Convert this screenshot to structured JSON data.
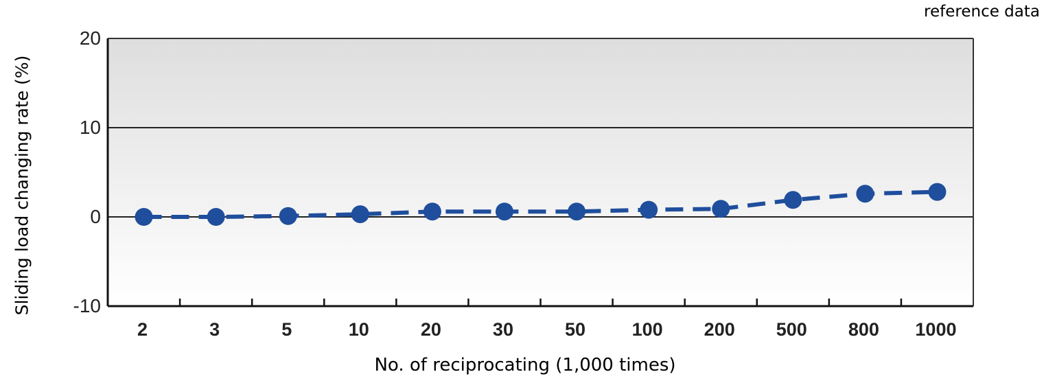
{
  "note": "reference data",
  "chart_data": {
    "type": "line",
    "title": "",
    "xlabel": "No. of reciprocating (1,000 times)",
    "ylabel": "Sliding load changing rate (%)",
    "categories": [
      "2",
      "3",
      "5",
      "10",
      "20",
      "30",
      "50",
      "100",
      "200",
      "500",
      "800",
      "1000"
    ],
    "series": [
      {
        "values": [
          0.0,
          0.0,
          0.1,
          0.3,
          0.6,
          0.6,
          0.6,
          0.8,
          0.9,
          1.9,
          2.6,
          2.8
        ],
        "color": "#1f4e9c",
        "line_style": "dashed",
        "marker": "circle"
      }
    ],
    "ylim": [
      -10,
      20
    ],
    "yticks": [
      "20",
      "10",
      "0",
      "-10"
    ],
    "ytick_values": [
      20,
      10,
      0,
      -10
    ],
    "gridlines": [
      10,
      0
    ],
    "grid": true,
    "legend": "none",
    "background_gradient": [
      "#dedede",
      "#ffffff"
    ]
  }
}
